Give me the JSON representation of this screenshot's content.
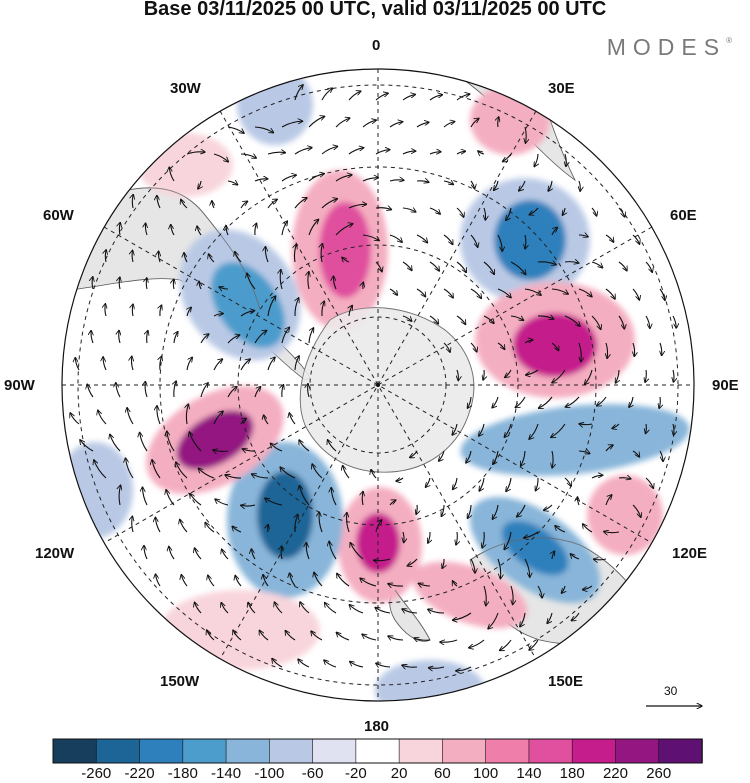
{
  "title": "Base 03/11/2025 00 UTC, valid 03/11/2025 00 UTC",
  "brand": "MODES",
  "brand_mark": "®",
  "longitude_labels": {
    "lon_0": "0",
    "lon_30e": "30E",
    "lon_60e": "60E",
    "lon_90e": "90E",
    "lon_120e": "120E",
    "lon_150e": "150E",
    "lon_180": "180",
    "lon_150w": "150W",
    "lon_120w": "120W",
    "lon_90w": "90W",
    "lon_60w": "60W",
    "lon_30w": "30W"
  },
  "reference_vector": {
    "label": "30",
    "magnitude": 30
  },
  "projection": "south-polar-stereographic",
  "colorbar": {
    "ticks": [
      "-260",
      "-220",
      "-180",
      "-140",
      "-100",
      "-60",
      "-20",
      "20",
      "60",
      "100",
      "140",
      "180",
      "220",
      "260"
    ],
    "colors": [
      "#173e5c",
      "#1d6596",
      "#2d80bc",
      "#4c9ccc",
      "#88b5d9",
      "#b9c9e5",
      "#e0e1f1",
      "#ffffff",
      "#f8d5dc",
      "#f4aec1",
      "#ef7eaa",
      "#e0509e",
      "#c51d8c",
      "#931681",
      "#5e1173"
    ]
  },
  "anomaly_centers": [
    {
      "name": "positive-anomaly-south-atlantic-west",
      "sign": "positive",
      "value": 180
    },
    {
      "name": "negative-anomaly-south-atlantic-east",
      "sign": "negative",
      "value": -200
    },
    {
      "name": "positive-anomaly-indian-ocean",
      "sign": "positive",
      "value": 240
    },
    {
      "name": "negative-anomaly-indian-ocean-band",
      "sign": "negative",
      "value": -140
    },
    {
      "name": "negative-anomaly-south-of-australia",
      "sign": "negative",
      "value": -180
    },
    {
      "name": "positive-anomaly-tasman",
      "sign": "positive",
      "value": 140
    },
    {
      "name": "positive-anomaly-ross-sea",
      "sign": "positive",
      "value": 200
    },
    {
      "name": "negative-anomaly-south-pacific",
      "sign": "negative",
      "value": -240
    },
    {
      "name": "positive-anomaly-bellingshausen",
      "sign": "positive",
      "value": 240
    },
    {
      "name": "negative-anomaly-drake-passage",
      "sign": "negative",
      "value": -160
    }
  ]
}
